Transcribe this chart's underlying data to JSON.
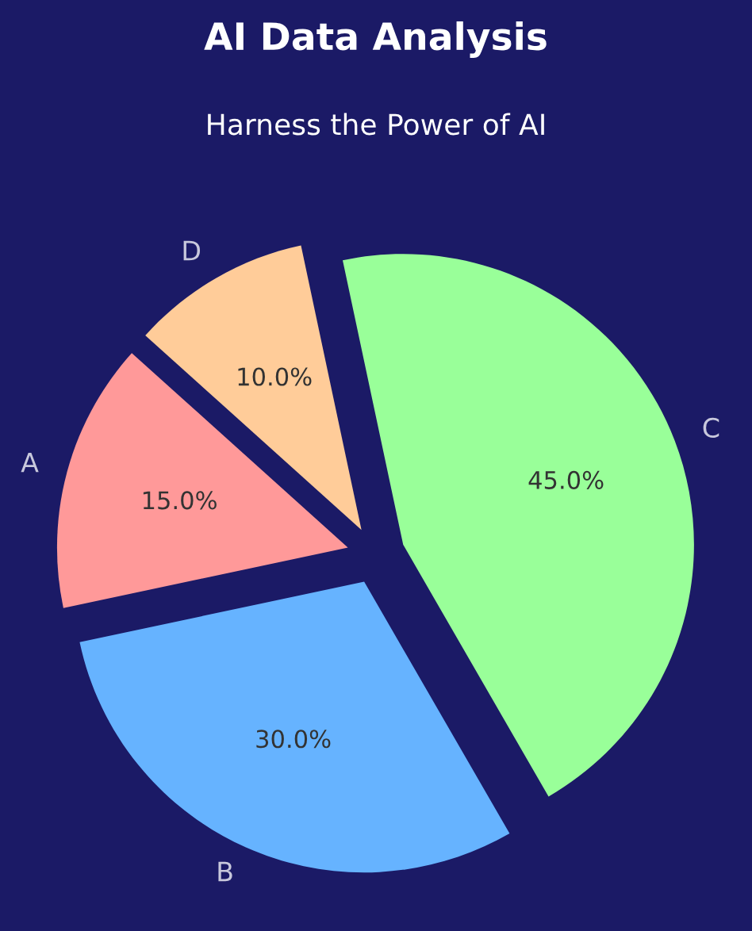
{
  "chart_data": {
    "type": "pie",
    "title": "AI Data Analysis",
    "subtitle": "Harness the Power of AI",
    "categories": [
      "A",
      "B",
      "C",
      "D"
    ],
    "values": [
      15,
      30,
      45,
      10
    ],
    "colors": [
      "#ff9999",
      "#66b3ff",
      "#99ff99",
      "#ffcc99"
    ],
    "value_labels": [
      "15.0%",
      "30.0%",
      "45.0%",
      "10.0%"
    ]
  }
}
